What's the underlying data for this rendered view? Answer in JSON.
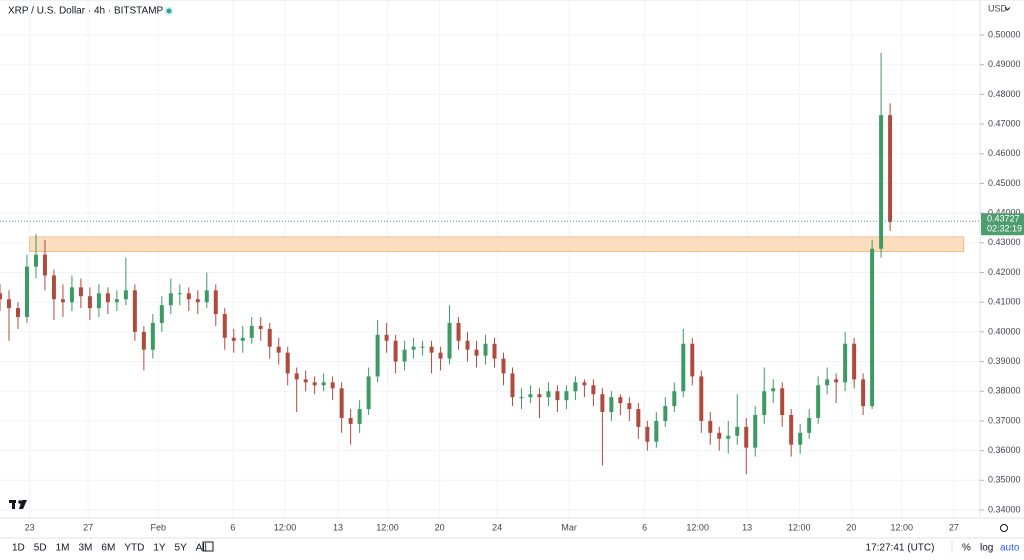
{
  "chart_data": {
    "type": "candlestick",
    "title": "XRP / U.S. Dollar · 4h · BITSTAMP",
    "currency": "USD",
    "up_color": "#3d9a62",
    "down_color": "#b04a3c",
    "grid": true,
    "open": [
      0.413,
      0.411,
      0.408,
      0.405,
      0.422,
      0.426,
      0.419,
      0.411,
      0.41,
      0.415,
      0.412,
      0.408,
      0.413,
      0.41,
      0.411,
      0.414,
      0.4,
      0.394,
      0.403,
      0.409,
      0.413,
      0.413,
      0.411,
      0.41,
      0.414,
      0.406,
      0.398,
      0.397,
      0.398,
      0.402,
      0.401,
      0.395,
      0.393,
      0.386,
      0.384,
      0.383,
      0.382,
      0.383,
      0.381,
      0.371,
      0.369,
      0.374,
      0.385,
      0.399,
      0.397,
      0.39,
      0.394,
      0.395,
      0.395,
      0.393,
      0.391,
      0.403,
      0.397,
      0.394,
      0.392,
      0.396,
      0.391,
      0.386,
      0.378,
      0.378,
      0.379,
      0.378,
      0.38,
      0.377,
      0.38,
      0.383,
      0.382,
      0.379,
      0.373,
      0.378,
      0.376,
      0.374,
      0.368,
      0.363,
      0.37,
      0.375,
      0.38,
      0.396,
      0.385,
      0.37,
      0.366,
      0.364,
      0.365,
      0.368,
      0.361,
      0.372,
      0.38,
      0.381,
      0.372,
      0.362,
      0.366,
      0.371,
      0.382,
      0.384,
      0.383,
      0.396,
      0.384,
      0.375,
      0.428,
      0.473
    ],
    "high": [
      0.416,
      0.414,
      0.41,
      0.426,
      0.433,
      0.431,
      0.421,
      0.416,
      0.419,
      0.418,
      0.415,
      0.416,
      0.415,
      0.414,
      0.425,
      0.416,
      0.402,
      0.406,
      0.412,
      0.418,
      0.416,
      0.415,
      0.414,
      0.42,
      0.416,
      0.408,
      0.401,
      0.402,
      0.405,
      0.405,
      0.403,
      0.398,
      0.395,
      0.388,
      0.387,
      0.385,
      0.386,
      0.385,
      0.383,
      0.374,
      0.377,
      0.388,
      0.404,
      0.403,
      0.399,
      0.397,
      0.398,
      0.397,
      0.397,
      0.395,
      0.409,
      0.405,
      0.4,
      0.397,
      0.399,
      0.398,
      0.393,
      0.388,
      0.381,
      0.382,
      0.381,
      0.383,
      0.382,
      0.382,
      0.385,
      0.384,
      0.384,
      0.381,
      0.38,
      0.379,
      0.378,
      0.376,
      0.37,
      0.373,
      0.378,
      0.383,
      0.401,
      0.398,
      0.387,
      0.373,
      0.368,
      0.37,
      0.379,
      0.371,
      0.375,
      0.388,
      0.384,
      0.383,
      0.374,
      0.369,
      0.374,
      0.385,
      0.388,
      0.386,
      0.4,
      0.398,
      0.386,
      0.431,
      0.494,
      0.477
    ],
    "low": [
      0.407,
      0.397,
      0.401,
      0.403,
      0.418,
      0.414,
      0.404,
      0.405,
      0.407,
      0.408,
      0.404,
      0.405,
      0.406,
      0.407,
      0.409,
      0.397,
      0.387,
      0.391,
      0.4,
      0.406,
      0.409,
      0.407,
      0.406,
      0.408,
      0.402,
      0.394,
      0.393,
      0.393,
      0.396,
      0.397,
      0.391,
      0.389,
      0.382,
      0.373,
      0.38,
      0.379,
      0.38,
      0.377,
      0.366,
      0.362,
      0.366,
      0.372,
      0.383,
      0.393,
      0.386,
      0.387,
      0.391,
      0.392,
      0.386,
      0.387,
      0.389,
      0.394,
      0.39,
      0.388,
      0.389,
      0.388,
      0.382,
      0.375,
      0.374,
      0.376,
      0.371,
      0.375,
      0.373,
      0.374,
      0.377,
      0.378,
      0.375,
      0.355,
      0.37,
      0.372,
      0.37,
      0.364,
      0.36,
      0.361,
      0.368,
      0.373,
      0.378,
      0.382,
      0.366,
      0.362,
      0.36,
      0.359,
      0.362,
      0.352,
      0.358,
      0.369,
      0.376,
      0.368,
      0.358,
      0.359,
      0.364,
      0.369,
      0.379,
      0.376,
      0.38,
      0.381,
      0.372,
      0.374,
      0.425,
      0.434
    ],
    "close": [
      0.411,
      0.408,
      0.405,
      0.422,
      0.426,
      0.419,
      0.411,
      0.41,
      0.415,
      0.412,
      0.408,
      0.413,
      0.41,
      0.411,
      0.414,
      0.4,
      0.394,
      0.403,
      0.409,
      0.413,
      0.413,
      0.411,
      0.41,
      0.414,
      0.406,
      0.398,
      0.397,
      0.398,
      0.402,
      0.401,
      0.395,
      0.393,
      0.386,
      0.384,
      0.383,
      0.382,
      0.383,
      0.381,
      0.371,
      0.369,
      0.374,
      0.385,
      0.399,
      0.397,
      0.39,
      0.394,
      0.395,
      0.395,
      0.393,
      0.391,
      0.403,
      0.397,
      0.394,
      0.392,
      0.396,
      0.391,
      0.386,
      0.378,
      0.378,
      0.379,
      0.378,
      0.38,
      0.377,
      0.38,
      0.383,
      0.382,
      0.379,
      0.373,
      0.378,
      0.376,
      0.374,
      0.368,
      0.363,
      0.37,
      0.375,
      0.38,
      0.396,
      0.385,
      0.37,
      0.366,
      0.364,
      0.365,
      0.368,
      0.361,
      0.372,
      0.38,
      0.381,
      0.372,
      0.362,
      0.366,
      0.371,
      0.382,
      0.384,
      0.383,
      0.396,
      0.384,
      0.375,
      0.428,
      0.473,
      0.437
    ],
    "xlim": [
      0,
      109
    ],
    "xticks": [
      {
        "value": 3.3,
        "label": "23"
      },
      {
        "value": 9.8,
        "label": "27"
      },
      {
        "value": 17.6,
        "label": "Feb"
      },
      {
        "value": 25.9,
        "label": "6"
      },
      {
        "value": 31.7,
        "label": "12:00"
      },
      {
        "value": 37.6,
        "label": "13"
      },
      {
        "value": 43.1,
        "label": "12:00"
      },
      {
        "value": 48.9,
        "label": "20"
      },
      {
        "value": 55.3,
        "label": "24"
      },
      {
        "value": 63.3,
        "label": "Mar"
      },
      {
        "value": 71.7,
        "label": "6"
      },
      {
        "value": 77.6,
        "label": "12:00"
      },
      {
        "value": 83.1,
        "label": "13"
      },
      {
        "value": 88.9,
        "label": "12:00"
      },
      {
        "value": 94.7,
        "label": "20"
      },
      {
        "value": 100.3,
        "label": "12:00"
      },
      {
        "value": 106.1,
        "label": "27"
      }
    ],
    "ylim": [
      0.3373,
      0.5118
    ],
    "yticks": [
      {
        "value": 0.34,
        "label": "0.34000"
      },
      {
        "value": 0.35,
        "label": "0.35000"
      },
      {
        "value": 0.36,
        "label": "0.36000"
      },
      {
        "value": 0.37,
        "label": "0.37000"
      },
      {
        "value": 0.38,
        "label": "0.38000"
      },
      {
        "value": 0.39,
        "label": "0.39000"
      },
      {
        "value": 0.4,
        "label": "0.40000"
      },
      {
        "value": 0.41,
        "label": "0.41000"
      },
      {
        "value": 0.42,
        "label": "0.42000"
      },
      {
        "value": 0.43,
        "label": "0.43000"
      },
      {
        "value": 0.44,
        "label": "0.44000"
      },
      {
        "value": 0.45,
        "label": "0.45000"
      },
      {
        "value": 0.46,
        "label": "0.46000"
      },
      {
        "value": 0.47,
        "label": "0.47000"
      },
      {
        "value": 0.48,
        "label": "0.48000"
      },
      {
        "value": 0.49,
        "label": "0.49000"
      },
      {
        "value": 0.5,
        "label": "0.50000"
      }
    ],
    "zone": {
      "low": 0.427,
      "high": 0.432,
      "start": 3.3,
      "end": 107.2,
      "color": "#fbd8b4"
    },
    "last_price": 0.43727,
    "countdown": "02:32:19",
    "last_color": "#4e9d6e",
    "time_ranges": [
      "1D",
      "5D",
      "1M",
      "3M",
      "6M",
      "YTD",
      "1Y",
      "5Y",
      "All"
    ],
    "clock": "17:27:41 (UTC)",
    "scale_options": [
      "%",
      "log",
      "auto"
    ]
  }
}
